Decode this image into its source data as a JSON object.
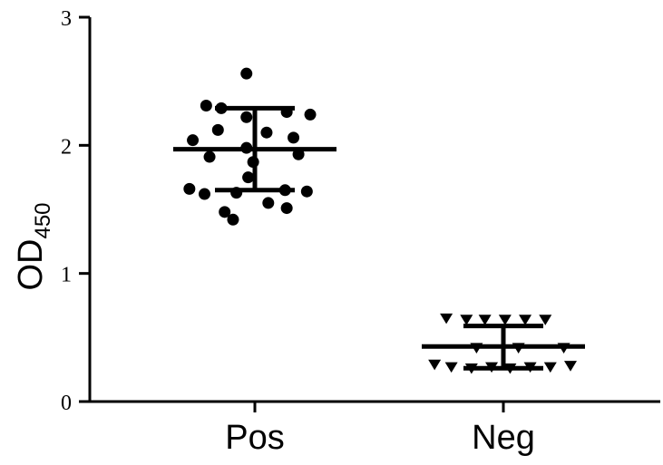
{
  "chart_data": {
    "type": "scatter",
    "title": "",
    "xlabel": "",
    "ylabel": "OD",
    "ylabel_subscript": "450",
    "ylim": [
      0,
      3
    ],
    "yticks": [
      "0",
      "1",
      "2",
      "3"
    ],
    "categories": [
      "Pos",
      "Neg"
    ],
    "grid": false,
    "series": [
      {
        "category": "Pos",
        "marker": "circle",
        "mean": 1.97,
        "error_low": 1.65,
        "error_high": 2.29,
        "points": [
          {
            "x": -0.05,
            "y": 2.56
          },
          {
            "x": -0.29,
            "y": 2.31
          },
          {
            "x": -0.2,
            "y": 2.29
          },
          {
            "x": 0.19,
            "y": 2.26
          },
          {
            "x": 0.33,
            "y": 2.24
          },
          {
            "x": -0.05,
            "y": 2.22
          },
          {
            "x": -0.22,
            "y": 2.12
          },
          {
            "x": 0.07,
            "y": 2.1
          },
          {
            "x": -0.37,
            "y": 2.04
          },
          {
            "x": 0.23,
            "y": 2.06
          },
          {
            "x": -0.05,
            "y": 1.98
          },
          {
            "x": -0.27,
            "y": 1.91
          },
          {
            "x": 0.26,
            "y": 1.93
          },
          {
            "x": -0.01,
            "y": 1.87
          },
          {
            "x": -0.04,
            "y": 1.75
          },
          {
            "x": -0.39,
            "y": 1.66
          },
          {
            "x": -0.11,
            "y": 1.63
          },
          {
            "x": 0.18,
            "y": 1.65
          },
          {
            "x": 0.31,
            "y": 1.64
          },
          {
            "x": -0.3,
            "y": 1.62
          },
          {
            "x": 0.08,
            "y": 1.55
          },
          {
            "x": -0.18,
            "y": 1.48
          },
          {
            "x": 0.19,
            "y": 1.51
          },
          {
            "x": -0.13,
            "y": 1.42
          }
        ]
      },
      {
        "category": "Neg",
        "marker": "triangle-down",
        "mean": 0.43,
        "error_low": 0.26,
        "error_high": 0.59,
        "points": [
          {
            "x": -0.34,
            "y": 0.65
          },
          {
            "x": -0.22,
            "y": 0.64
          },
          {
            "x": -0.11,
            "y": 0.64
          },
          {
            "x": 0.01,
            "y": 0.64
          },
          {
            "x": 0.13,
            "y": 0.64
          },
          {
            "x": 0.25,
            "y": 0.64
          },
          {
            "x": -0.16,
            "y": 0.42
          },
          {
            "x": 0.09,
            "y": 0.42
          },
          {
            "x": 0.36,
            "y": 0.42
          },
          {
            "x": -0.41,
            "y": 0.29
          },
          {
            "x": -0.31,
            "y": 0.27
          },
          {
            "x": -0.19,
            "y": 0.26
          },
          {
            "x": -0.07,
            "y": 0.27
          },
          {
            "x": 0.04,
            "y": 0.26
          },
          {
            "x": 0.16,
            "y": 0.27
          },
          {
            "x": 0.28,
            "y": 0.27
          },
          {
            "x": 0.4,
            "y": 0.28
          }
        ]
      }
    ]
  }
}
